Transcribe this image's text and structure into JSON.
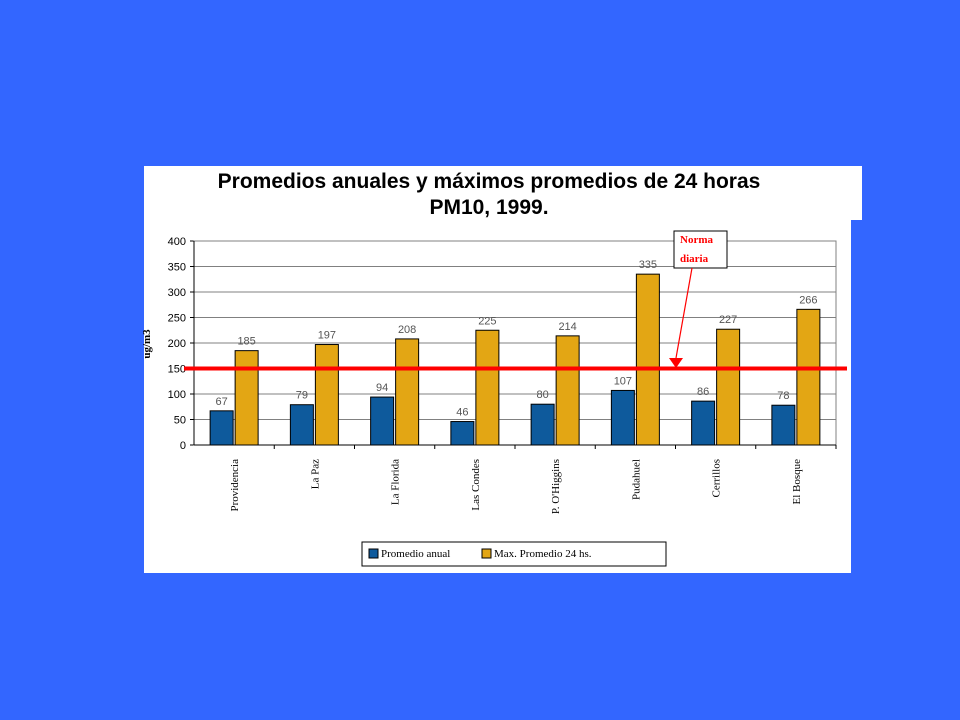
{
  "title": {
    "line1": "Promedios anuales y máximos promedios de 24 horas",
    "line2": "PM10, 1999."
  },
  "colors": {
    "background": "#3366ff",
    "series1": "#0e5a9c",
    "series2": "#e3a614",
    "norm_line": "#ff0000"
  },
  "chart_data": {
    "type": "bar",
    "title": "Promedios anuales y máximos promedios de 24 horas PM10, 1999.",
    "ylabel": "ug/m3",
    "xlabel": "",
    "ylim": [
      0,
      400
    ],
    "yticks": [
      0,
      50,
      100,
      150,
      200,
      250,
      300,
      350,
      400
    ],
    "grid": true,
    "legend_position": "bottom",
    "categories": [
      "Providencia",
      "La Paz",
      "La Florida",
      "Las Condes",
      "P. O'Higgins",
      "Pudahuel",
      "Cerrillos",
      "El Bosque"
    ],
    "series": [
      {
        "name": "Promedio anual",
        "values": [
          67,
          79,
          94,
          46,
          80,
          107,
          86,
          78
        ]
      },
      {
        "name": "Max. Promedio 24 hs.",
        "values": [
          185,
          197,
          208,
          225,
          214,
          335,
          227,
          266
        ]
      }
    ],
    "reference_line": {
      "value": 150
    },
    "annotation": {
      "line1": "Norma",
      "line2": "diaria"
    }
  }
}
